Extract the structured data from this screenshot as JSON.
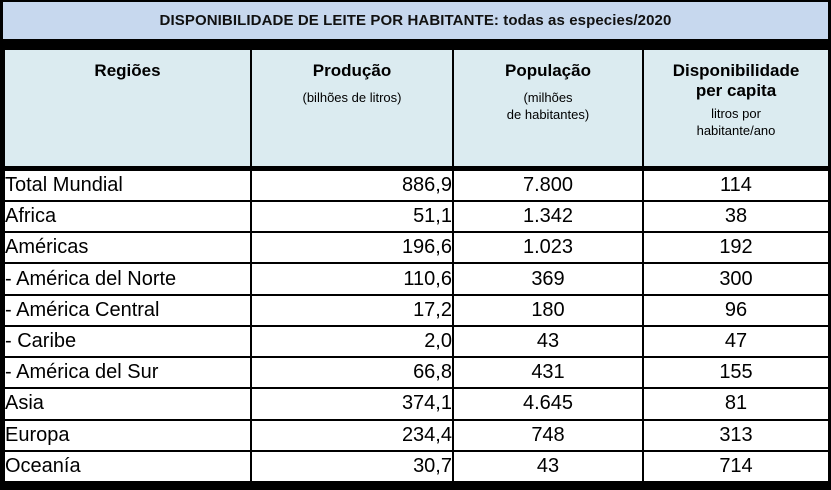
{
  "title": "DISPONIBILIDADE DE LEITE POR HABITANTE: todas as especies/2020",
  "header": {
    "regioes": "Regiões",
    "producao_title": "Produção",
    "producao_sub": "(bilhões de litros)",
    "populacao_title": "População",
    "populacao_sub1": "(milhões",
    "populacao_sub2": "de habitantes)",
    "disponibilidade_title1": "Disponibilidade",
    "disponibilidade_title2": "per capita",
    "disponibilidade_sub1": "litros por",
    "disponibilidade_sub2": "habitante/ano"
  },
  "colors": {
    "title_bar_bg": "#c7d8ee",
    "header_bg": "#dbebf0",
    "row_bg": "#ffffff",
    "border": "#000000"
  },
  "chart_data": {
    "type": "table",
    "title": "DISPONIBILIDADE DE LEITE POR HABITANTE: todas as especies/2020",
    "columns": [
      "Regiões",
      "Produção (bilhões de litros)",
      "População (milhões de habitantes)",
      "Disponibilidade per capita (litros por habitante/ano)"
    ],
    "rows": [
      [
        "Total Mundial",
        "886,9",
        "7.800",
        "114"
      ],
      [
        "Africa",
        "51,1",
        "1.342",
        "38"
      ],
      [
        "Américas",
        "196,6",
        "1.023",
        "192"
      ],
      [
        "- América del Norte",
        "110,6",
        "369",
        "300"
      ],
      [
        "- América Central",
        "17,2",
        "180",
        "96"
      ],
      [
        "- Caribe",
        "2,0",
        "43",
        "47"
      ],
      [
        "- América del Sur",
        "66,8",
        "431",
        "155"
      ],
      [
        "Asia",
        "374,1",
        "4.645",
        "81"
      ],
      [
        "Europa",
        "234,4",
        "748",
        "313"
      ],
      [
        "Oceanía",
        "30,7",
        "43",
        "714"
      ]
    ]
  }
}
